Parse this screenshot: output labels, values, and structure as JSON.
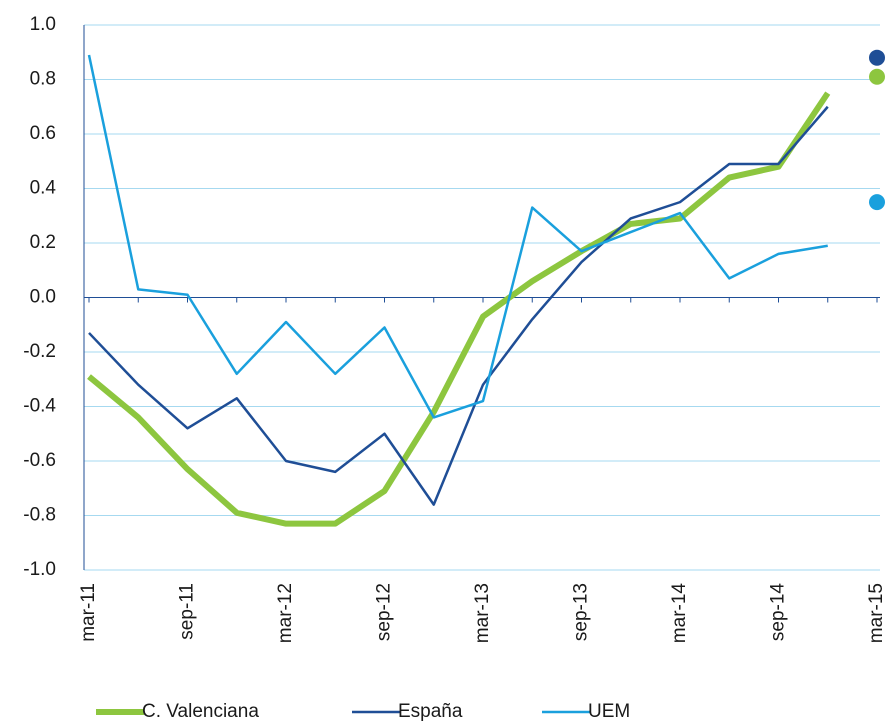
{
  "chart_data": {
    "type": "line",
    "categories": [
      "mar-11",
      null,
      "sep-11",
      null,
      "mar-12",
      null,
      "sep-12",
      null,
      "mar-13",
      null,
      "sep-13",
      null,
      "mar-14",
      null,
      "sep-14",
      null,
      "mar-15"
    ],
    "series": [
      {
        "name": "C. Valenciana",
        "color": "#8dc63f",
        "width": 6,
        "values": [
          -0.29,
          -0.44,
          -0.63,
          -0.79,
          -0.83,
          -0.83,
          -0.71,
          -0.42,
          -0.07,
          0.06,
          0.17,
          0.27,
          0.29,
          0.44,
          0.48,
          0.75,
          null
        ],
        "point": 0.81
      },
      {
        "name": "España",
        "color": "#1f4e96",
        "width": 2.5,
        "values": [
          -0.13,
          -0.32,
          -0.48,
          -0.37,
          -0.6,
          -0.64,
          -0.5,
          -0.76,
          -0.32,
          -0.08,
          0.13,
          0.29,
          0.35,
          0.49,
          0.49,
          0.7,
          null
        ],
        "point": 0.88
      },
      {
        "name": "UEM",
        "color": "#1aa0dd",
        "width": 2.5,
        "values": [
          0.89,
          0.03,
          0.01,
          -0.28,
          -0.09,
          -0.28,
          -0.11,
          -0.44,
          -0.38,
          0.33,
          0.17,
          0.24,
          0.31,
          0.07,
          0.16,
          0.19,
          null
        ],
        "point": 0.35
      }
    ],
    "ylim": [
      -1,
      1
    ],
    "yticks": [
      {
        "value": 1,
        "label": "1.0"
      },
      0.8,
      0.6,
      0.4,
      0.2,
      {
        "value": 0,
        "label": "0.0"
      },
      -0.2,
      -0.4,
      -0.6,
      -0.8,
      {
        "value": -1,
        "label": "-1.0"
      }
    ],
    "grid": true
  }
}
